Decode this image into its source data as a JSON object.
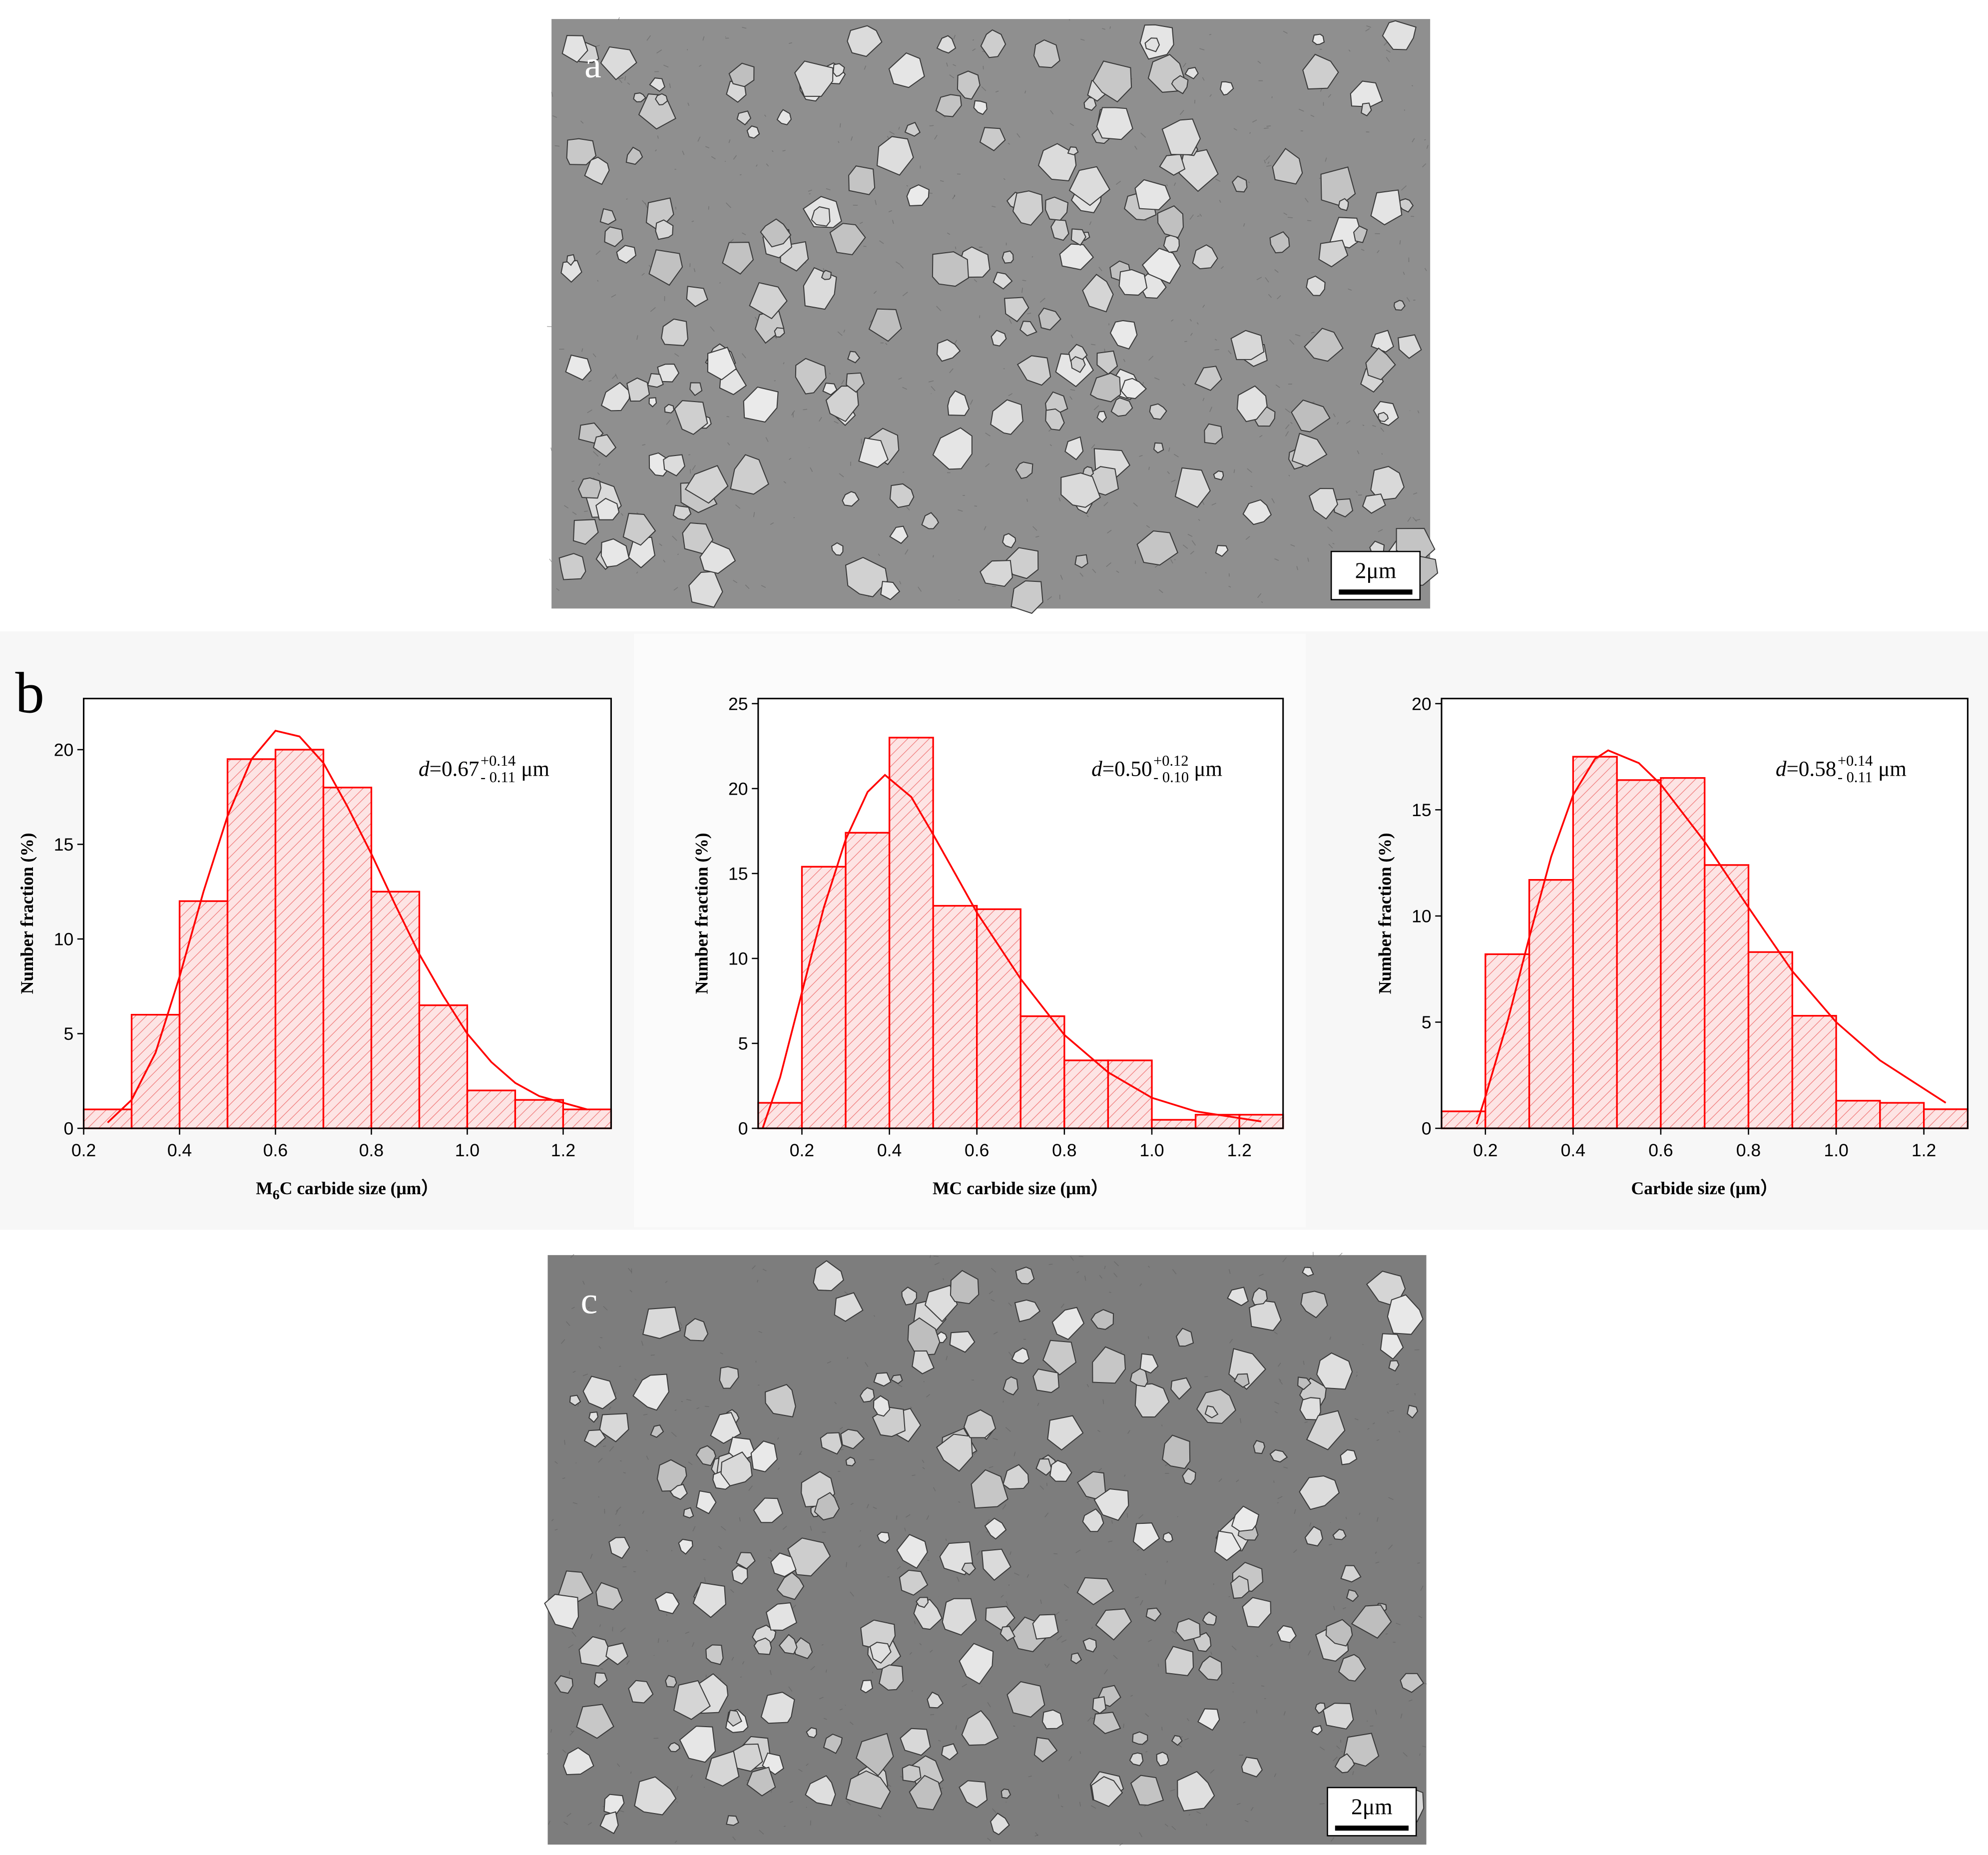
{
  "figure": {
    "panel_a": "a",
    "panel_b": "b",
    "panel_c": "c",
    "scale_bar_a": "2μm",
    "scale_bar_c": "2μm"
  },
  "chart_data": [
    {
      "type": "histogram",
      "color": "#ff0000",
      "bins": [
        0.2,
        0.3,
        0.4,
        0.5,
        0.6,
        0.7,
        0.8,
        0.9,
        1.0,
        1.1,
        1.2,
        1.3
      ],
      "values": [
        1,
        6,
        12,
        19.5,
        20,
        18,
        12.5,
        6.5,
        2,
        1.5,
        1
      ],
      "xlim": [
        0.2,
        1.3
      ],
      "ylim": [
        0,
        22.7
      ],
      "xticks": [
        0.2,
        0.4,
        0.6,
        0.8,
        {
          "value": 1,
          "label": "1.0"
        },
        1.2
      ],
      "yticks": [
        0,
        5,
        10,
        15,
        20
      ],
      "ylabel": "Number fraction (%)",
      "xlabel": {
        "text": "M",
        "sub": "6",
        "rest": "C carbide size (μm）"
      },
      "annotation": {
        "symbol": "d",
        "text": "=0.67",
        "sup": "+0.14",
        "sub": "- 0.11",
        "unit": "μm"
      },
      "fit": {
        "x": [
          0.25,
          0.3,
          0.35,
          0.4,
          0.45,
          0.5,
          0.55,
          0.6,
          0.65,
          0.7,
          0.75,
          0.8,
          0.85,
          0.9,
          0.95,
          1.0,
          1.05,
          1.1,
          1.15,
          1.25
        ],
        "values": [
          0.3,
          1.5,
          4,
          8,
          12.5,
          16.5,
          19.5,
          21,
          20.7,
          19.3,
          17,
          14.5,
          11.8,
          9.2,
          7,
          5,
          3.5,
          2.4,
          1.7,
          1.0
        ]
      }
    },
    {
      "type": "histogram",
      "color": "#ff0000",
      "bins": [
        0.1,
        0.2,
        0.3,
        0.4,
        0.5,
        0.6,
        0.7,
        0.8,
        0.9,
        1.0,
        1.1,
        1.2,
        1.3
      ],
      "values": [
        1.5,
        15.4,
        17.4,
        23,
        13.1,
        12.9,
        6.6,
        4,
        4,
        0.5,
        0.8,
        0.8
      ],
      "xlim": [
        0.1,
        1.3
      ],
      "ylim": [
        0,
        25.3
      ],
      "xticks": [
        0.2,
        0.4,
        0.6,
        0.8,
        {
          "value": 1,
          "label": "1.0"
        },
        1.2
      ],
      "yticks": [
        0,
        5,
        10,
        15,
        20,
        25
      ],
      "ylabel": "Number fraction (%)",
      "xlabel": {
        "text": "MC carbide size (μm）"
      },
      "annotation": {
        "symbol": "d",
        "text": "=0.50",
        "sup": "+0.12",
        "sub": "- 0.10",
        "unit": "μm"
      },
      "fit": {
        "x": [
          0.11,
          0.15,
          0.2,
          0.25,
          0.3,
          0.35,
          0.39,
          0.45,
          0.5,
          0.55,
          0.6,
          0.7,
          0.8,
          0.9,
          1.0,
          1.1,
          1.25
        ],
        "values": [
          0,
          3,
          8,
          13,
          17,
          19.8,
          20.8,
          19.5,
          17.3,
          15,
          12.7,
          8.8,
          5.5,
          3.3,
          1.8,
          1,
          0.4
        ]
      }
    },
    {
      "type": "histogram",
      "color": "#ff0000",
      "bins": [
        0.1,
        0.2,
        0.3,
        0.4,
        0.5,
        0.6,
        0.7,
        0.8,
        0.9,
        1.0,
        1.1,
        1.2,
        1.3
      ],
      "values": [
        0.8,
        8.2,
        11.7,
        17.5,
        16.4,
        16.5,
        12.4,
        8.3,
        5.3,
        1.3,
        1.2,
        0.9
      ],
      "xlim": [
        0.1,
        1.3
      ],
      "ylim": [
        0,
        20.24
      ],
      "xticks": [
        0.2,
        0.4,
        0.6,
        0.8,
        {
          "value": 1,
          "label": "1.0"
        },
        1.2
      ],
      "yticks": [
        0,
        5,
        10,
        15,
        20
      ],
      "ylabel": "Number fraction (%)",
      "xlabel": {
        "text": "Carbide size (μm）"
      },
      "annotation": {
        "symbol": "d",
        "text": "=0.58",
        "sup": "+0.14",
        "sub": "- 0.11",
        "unit": "μm"
      },
      "fit": {
        "x": [
          0.18,
          0.2,
          0.25,
          0.3,
          0.35,
          0.4,
          0.45,
          0.48,
          0.55,
          0.6,
          0.7,
          0.8,
          0.9,
          1.0,
          1.1,
          1.25
        ],
        "values": [
          0.2,
          1.5,
          5,
          9,
          12.8,
          15.7,
          17.4,
          17.8,
          17.2,
          16.2,
          13.5,
          10.4,
          7.4,
          5,
          3.2,
          1.2
        ]
      }
    }
  ]
}
